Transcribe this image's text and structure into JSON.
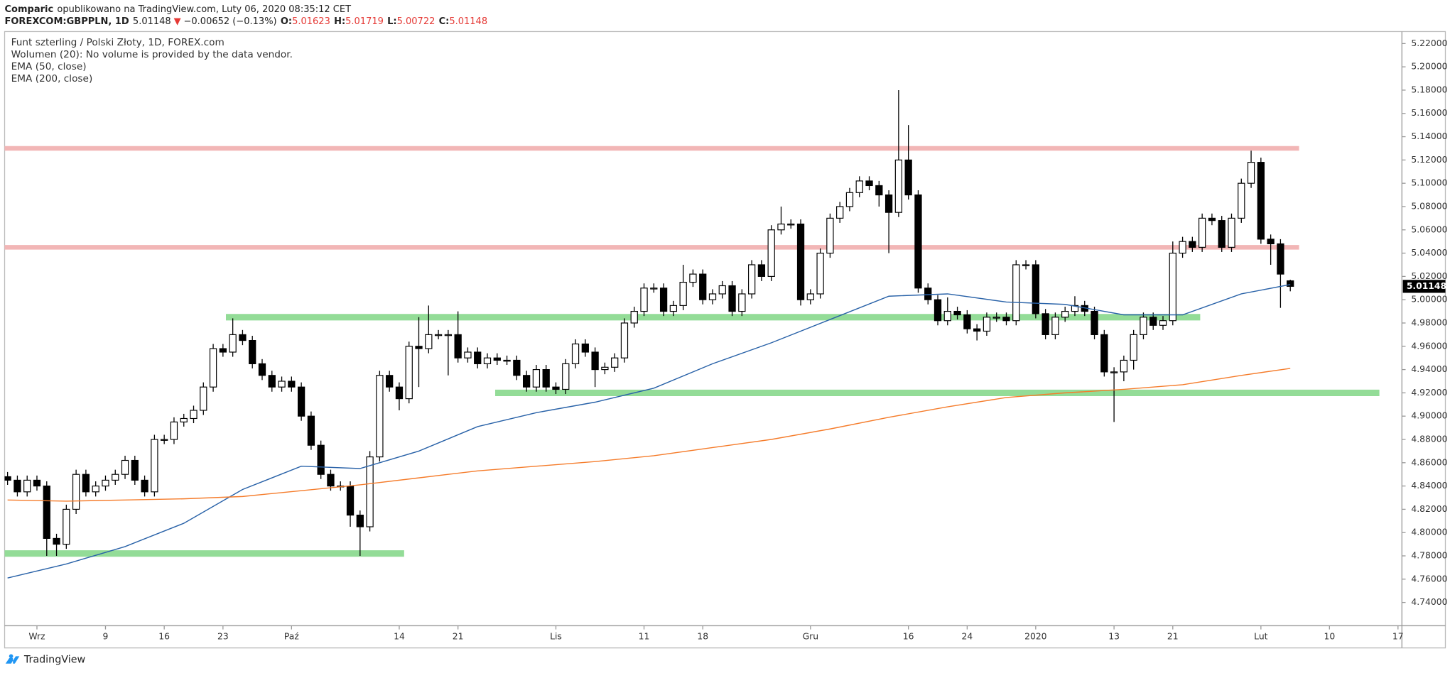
{
  "header": {
    "author": "Comparic",
    "published": "opublikowano na TradingView.com, Luty 06, 2020 08:35:12 CET",
    "symbol": "FOREXCOM:GBPPLN, 1D",
    "arrow": "▼",
    "change": "−0.00652 (−0.13%)",
    "labels": [
      "O:",
      "H:",
      "L:",
      "C:"
    ]
  },
  "footer": {
    "brand": "TradingView"
  },
  "chart_data": {
    "type": "candlestick",
    "note": "Wolumen (20): No volume is provided by the data vendor.",
    "xlim": [
      -0.3,
      142.4
    ],
    "xticks": [
      {
        "value": 3,
        "label": "Wrz"
      },
      {
        "value": 10,
        "label": "9"
      },
      {
        "value": 16,
        "label": "16"
      },
      {
        "value": 22,
        "label": "23"
      },
      {
        "value": 29,
        "label": "Paź"
      },
      {
        "value": 40,
        "label": "14"
      },
      {
        "value": 46,
        "label": "21"
      },
      {
        "value": 56,
        "label": "Lis"
      },
      {
        "value": 65,
        "label": "11"
      },
      {
        "value": 71,
        "label": "18"
      },
      {
        "value": 82,
        "label": "Gru"
      },
      {
        "value": 92,
        "label": "16"
      },
      {
        "value": 98,
        "label": "24"
      },
      {
        "value": 105,
        "label": "2020"
      },
      {
        "value": 113,
        "label": "13"
      },
      {
        "value": 119,
        "label": "21"
      },
      {
        "value": 128,
        "label": "Lut"
      },
      {
        "value": 135,
        "label": "10"
      },
      {
        "value": 142,
        "label": "17"
      }
    ],
    "ylim": [
      4.72,
      5.2303
    ],
    "yticks": [
      {
        "value": 4.74,
        "label": "4.74000"
      },
      {
        "value": 4.76,
        "label": "4.76000"
      },
      {
        "value": 4.78,
        "label": "4.78000"
      },
      {
        "value": 4.8,
        "label": "4.80000"
      },
      {
        "value": 4.82,
        "label": "4.82000"
      },
      {
        "value": 4.84,
        "label": "4.84000"
      },
      {
        "value": 4.86,
        "label": "4.86000"
      },
      {
        "value": 4.88,
        "label": "4.88000"
      },
      {
        "value": 4.9,
        "label": "4.90000"
      },
      {
        "value": 4.92,
        "label": "4.92000"
      },
      {
        "value": 4.94,
        "label": "4.94000"
      },
      {
        "value": 4.96,
        "label": "4.96000"
      },
      {
        "value": 4.98,
        "label": "4.98000"
      },
      {
        "value": 5.0,
        "label": "5.00000"
      },
      {
        "value": 5.02,
        "label": "5.02000"
      },
      {
        "value": 5.04,
        "label": "5.04000"
      },
      {
        "value": 5.06,
        "label": "5.06000"
      },
      {
        "value": 5.08,
        "label": "5.08000"
      },
      {
        "value": 5.1,
        "label": "5.10000"
      },
      {
        "value": 5.12,
        "label": "5.12000"
      },
      {
        "value": 5.14,
        "label": "5.14000"
      },
      {
        "value": 5.16,
        "label": "5.16000"
      },
      {
        "value": 5.18,
        "label": "5.18000"
      },
      {
        "value": 5.2,
        "label": "5.20000"
      },
      {
        "value": 5.22,
        "label": "5.22000"
      }
    ],
    "series": [
      {
        "name": "Funt szterling / Polski Złoty, 1D, FOREX.com",
        "up_color": "#ffffff",
        "down_color": "#000000",
        "open": [
          4.848,
          4.845,
          4.835,
          4.845,
          4.84,
          4.795,
          4.79,
          4.82,
          4.85,
          4.835,
          4.84,
          4.845,
          4.85,
          4.862,
          4.845,
          4.835,
          4.88,
          4.88,
          4.895,
          4.898,
          4.905,
          4.925,
          4.958,
          4.955,
          4.97,
          4.965,
          4.945,
          4.935,
          4.925,
          4.93,
          4.925,
          4.9,
          4.875,
          4.85,
          4.84,
          4.84,
          4.815,
          4.805,
          4.865,
          4.935,
          4.925,
          4.915,
          4.96,
          4.958,
          4.97,
          4.97,
          4.97,
          4.95,
          4.955,
          4.945,
          4.95,
          4.948,
          4.948,
          4.935,
          4.925,
          4.94,
          4.925,
          4.923,
          4.945,
          4.962,
          4.955,
          4.94,
          4.942,
          4.95,
          4.98,
          4.99,
          5.01,
          5.01,
          4.99,
          4.995,
          5.015,
          5.022,
          5.0,
          5.005,
          5.012,
          4.99,
          5.005,
          5.03,
          5.02,
          5.06,
          5.065,
          5.065,
          5.0,
          5.005,
          5.04,
          5.07,
          5.08,
          5.092,
          5.102,
          5.098,
          5.09,
          5.075,
          5.12,
          5.09,
          5.01,
          5.0,
          4.982,
          4.99,
          4.987,
          4.975,
          4.973,
          4.985,
          4.985,
          4.982,
          5.03,
          5.03,
          4.988,
          4.97,
          4.985,
          4.99,
          4.995,
          4.99,
          4.97,
          4.938,
          4.938,
          4.948,
          4.97,
          4.985,
          4.978,
          4.982,
          5.04,
          5.05,
          5.045,
          5.07,
          5.068,
          5.045,
          5.07,
          5.1,
          5.118,
          5.052,
          5.048,
          5.01623
        ],
        "high": [
          4.852,
          4.849,
          4.849,
          4.849,
          4.844,
          4.799,
          4.824,
          4.854,
          4.854,
          4.844,
          4.849,
          4.854,
          4.866,
          4.866,
          4.849,
          4.884,
          4.884,
          4.899,
          4.902,
          4.909,
          4.929,
          4.962,
          4.962,
          4.984,
          4.974,
          4.969,
          4.949,
          4.939,
          4.934,
          4.934,
          4.929,
          4.904,
          4.879,
          4.854,
          4.844,
          4.844,
          4.819,
          4.87,
          4.939,
          4.939,
          4.929,
          4.964,
          4.985,
          4.995,
          4.974,
          4.974,
          4.99,
          4.959,
          4.959,
          4.954,
          4.954,
          4.952,
          4.952,
          4.939,
          4.944,
          4.944,
          4.929,
          4.949,
          4.966,
          4.966,
          4.959,
          4.946,
          4.954,
          4.984,
          4.994,
          5.014,
          5.014,
          5.014,
          4.999,
          5.03,
          5.026,
          5.026,
          5.009,
          5.016,
          5.016,
          5.009,
          5.034,
          5.034,
          5.064,
          5.08,
          5.069,
          5.069,
          5.009,
          5.044,
          5.074,
          5.084,
          5.096,
          5.106,
          5.106,
          5.102,
          5.094,
          5.18,
          5.15,
          5.094,
          5.014,
          5.004,
          5.002,
          4.994,
          4.991,
          4.979,
          4.989,
          4.989,
          4.989,
          5.034,
          5.034,
          5.034,
          4.992,
          4.989,
          4.994,
          5.003,
          4.999,
          4.994,
          4.974,
          4.942,
          4.952,
          4.974,
          4.989,
          4.989,
          4.986,
          5.05,
          5.054,
          5.054,
          5.074,
          5.074,
          5.072,
          5.074,
          5.104,
          5.128,
          5.122,
          5.056,
          5.052,
          5.01719
        ],
        "low": [
          4.841,
          4.831,
          4.831,
          4.836,
          4.78,
          4.78,
          4.786,
          4.816,
          4.831,
          4.831,
          4.836,
          4.841,
          4.846,
          4.841,
          4.831,
          4.831,
          4.876,
          4.876,
          4.891,
          4.894,
          4.901,
          4.921,
          4.951,
          4.951,
          4.961,
          4.941,
          4.931,
          4.921,
          4.921,
          4.921,
          4.896,
          4.871,
          4.846,
          4.836,
          4.836,
          4.805,
          4.78,
          4.801,
          4.861,
          4.921,
          4.905,
          4.911,
          4.925,
          4.954,
          4.966,
          4.935,
          4.946,
          4.946,
          4.941,
          4.941,
          4.944,
          4.944,
          4.931,
          4.921,
          4.921,
          4.921,
          4.919,
          4.919,
          4.941,
          4.951,
          4.925,
          4.936,
          4.938,
          4.946,
          4.976,
          4.986,
          5.006,
          4.986,
          4.986,
          4.991,
          5.011,
          4.996,
          4.996,
          5.001,
          4.986,
          4.986,
          5.001,
          5.016,
          5.016,
          5.056,
          5.061,
          4.995,
          4.996,
          5.001,
          5.036,
          5.066,
          5.076,
          5.088,
          5.094,
          5.08,
          5.04,
          5.071,
          5.086,
          5.006,
          4.996,
          4.978,
          4.978,
          4.983,
          4.971,
          4.965,
          4.969,
          4.981,
          4.978,
          4.978,
          5.026,
          4.984,
          4.966,
          4.966,
          4.981,
          4.986,
          4.986,
          4.966,
          4.934,
          4.895,
          4.93,
          4.94,
          4.966,
          4.974,
          4.974,
          4.978,
          5.036,
          5.041,
          5.041,
          5.064,
          5.041,
          5.041,
          5.066,
          5.096,
          5.048,
          5.03,
          4.993,
          5.00722
        ],
        "close": [
          4.845,
          4.835,
          4.845,
          4.84,
          4.795,
          4.79,
          4.82,
          4.85,
          4.835,
          4.84,
          4.845,
          4.85,
          4.862,
          4.845,
          4.835,
          4.88,
          4.88,
          4.895,
          4.898,
          4.905,
          4.925,
          4.958,
          4.955,
          4.97,
          4.965,
          4.945,
          4.935,
          4.925,
          4.93,
          4.925,
          4.9,
          4.875,
          4.85,
          4.84,
          4.84,
          4.815,
          4.805,
          4.865,
          4.935,
          4.925,
          4.915,
          4.96,
          4.958,
          4.97,
          4.97,
          4.97,
          4.95,
          4.955,
          4.945,
          4.95,
          4.948,
          4.948,
          4.935,
          4.925,
          4.94,
          4.925,
          4.923,
          4.945,
          4.962,
          4.955,
          4.94,
          4.942,
          4.95,
          4.98,
          4.99,
          5.01,
          5.01,
          4.99,
          4.995,
          5.015,
          5.022,
          5.0,
          5.005,
          5.012,
          4.99,
          5.005,
          5.03,
          5.02,
          5.06,
          5.065,
          5.065,
          5.0,
          5.005,
          5.04,
          5.07,
          5.08,
          5.092,
          5.102,
          5.098,
          5.09,
          5.075,
          5.12,
          5.09,
          5.01,
          5.0,
          4.982,
          4.99,
          4.987,
          4.975,
          4.973,
          4.985,
          4.985,
          4.982,
          5.03,
          5.03,
          4.988,
          4.97,
          4.985,
          4.99,
          4.995,
          4.99,
          4.97,
          4.938,
          4.938,
          4.948,
          4.97,
          4.985,
          4.978,
          4.982,
          5.04,
          5.05,
          5.045,
          5.07,
          5.068,
          5.045,
          5.07,
          5.1,
          5.118,
          5.052,
          5.048,
          5.022,
          5.01148
        ]
      }
    ],
    "lines": [
      {
        "name": "EMA (50, close)",
        "color": "#2962a8",
        "x": [
          0,
          6,
          12,
          18,
          24,
          30,
          36,
          42,
          48,
          54,
          60,
          66,
          72,
          78,
          84,
          90,
          96,
          102,
          108,
          114,
          120,
          126,
          131
        ],
        "values": [
          4.761,
          4.773,
          4.788,
          4.808,
          4.837,
          4.857,
          4.855,
          4.87,
          4.891,
          4.903,
          4.912,
          4.924,
          4.945,
          4.963,
          4.983,
          5.003,
          5.005,
          4.998,
          4.996,
          4.987,
          4.987,
          5.005,
          5.013
        ]
      },
      {
        "name": "EMA (200, close)",
        "color": "#f57c2b",
        "x": [
          0,
          6,
          12,
          18,
          24,
          30,
          36,
          42,
          48,
          54,
          60,
          66,
          72,
          78,
          84,
          90,
          96,
          102,
          108,
          114,
          120,
          126,
          131
        ],
        "values": [
          4.828,
          4.827,
          4.828,
          4.829,
          4.831,
          4.836,
          4.841,
          4.847,
          4.853,
          4.857,
          4.861,
          4.866,
          4.873,
          4.88,
          4.889,
          4.899,
          4.908,
          4.916,
          4.92,
          4.923,
          4.927,
          4.935,
          4.941
        ]
      }
    ],
    "levels": [
      {
        "value": 5.13,
        "color": "#f2b6b6",
        "from": -0.3,
        "to": 131.9
      },
      {
        "value": 5.045,
        "color": "#f2b6b6",
        "from": -0.3,
        "to": 131.9
      },
      {
        "value": 4.985,
        "color": "#93dc97",
        "from": 22.3,
        "to": 121.8
      },
      {
        "value": 4.92,
        "color": "#93dc97",
        "from": 49.8,
        "to": 140.1
      },
      {
        "value": 4.782,
        "color": "#93dc97",
        "from": -0.3,
        "to": 40.5
      }
    ]
  }
}
